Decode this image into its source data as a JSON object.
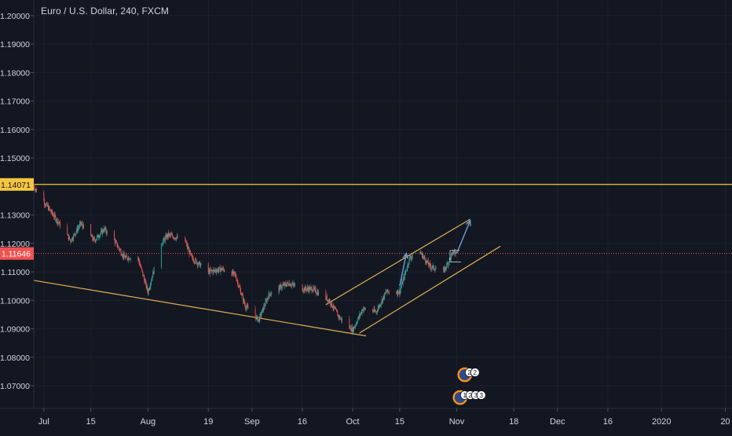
{
  "chart_title": "Euro / U.S. Dollar, 240, FXCM",
  "chart_data": {
    "type": "candlestick",
    "title": "Euro / U.S. Dollar, 240, FXCM",
    "symbol": "Euro / U.S. Dollar",
    "interval": "240",
    "source": "FXCM",
    "y_ticks": [
      "1.20000",
      "1.19000",
      "1.18000",
      "1.17000",
      "1.16000",
      "1.15000",
      "1.13000",
      "1.12000",
      "1.11000",
      "1.10000",
      "1.09000",
      "1.08000",
      "1.07000"
    ],
    "ylim": [
      1.062,
      1.2055
    ],
    "x_ticks": [
      "Jul",
      "15",
      "Aug",
      "19",
      "Sep",
      "16",
      "Oct",
      "15",
      "Nov",
      "18",
      "Dec",
      "16",
      "2020",
      "20"
    ],
    "x_tick_dates": [
      "2019-07-01",
      "2019-07-15",
      "2019-08-01",
      "2019-08-19",
      "2019-09-01",
      "2019-09-16",
      "2019-10-01",
      "2019-10-15",
      "2019-11-01",
      "2019-11-18",
      "2019-12-01",
      "2019-12-16",
      "2020-01-01",
      "2020-01-20"
    ],
    "xlim": [
      "2019-06-28",
      "2020-01-22"
    ],
    "price_path": [
      [
        "2019-06-28",
        1.14
      ],
      [
        "2019-07-02",
        1.133
      ],
      [
        "2019-07-05",
        1.128
      ],
      [
        "2019-07-09",
        1.121
      ],
      [
        "2019-07-12",
        1.127
      ],
      [
        "2019-07-16",
        1.121
      ],
      [
        "2019-07-19",
        1.125
      ],
      [
        "2019-07-22",
        1.121
      ],
      [
        "2019-07-25",
        1.115
      ],
      [
        "2019-07-29",
        1.115
      ],
      [
        "2019-08-01",
        1.103
      ],
      [
        "2019-08-05",
        1.12
      ],
      [
        "2019-08-07",
        1.123
      ],
      [
        "2019-08-12",
        1.121
      ],
      [
        "2019-08-14",
        1.115
      ],
      [
        "2019-08-19",
        1.11
      ],
      [
        "2019-08-23",
        1.111
      ],
      [
        "2019-08-27",
        1.109
      ],
      [
        "2019-08-30",
        1.098
      ],
      [
        "2019-09-03",
        1.093
      ],
      [
        "2019-09-06",
        1.102
      ],
      [
        "2019-09-10",
        1.105
      ],
      [
        "2019-09-12",
        1.106
      ],
      [
        "2019-09-16",
        1.104
      ],
      [
        "2019-09-19",
        1.104
      ],
      [
        "2019-09-24",
        1.1
      ],
      [
        "2019-09-27",
        1.094
      ],
      [
        "2019-10-01",
        1.0895
      ],
      [
        "2019-10-04",
        1.097
      ],
      [
        "2019-10-08",
        1.096
      ],
      [
        "2019-10-11",
        1.103
      ],
      [
        "2019-10-15",
        1.103
      ],
      [
        "2019-10-18",
        1.115
      ],
      [
        "2019-10-21",
        1.117
      ],
      [
        "2019-10-24",
        1.112
      ],
      [
        "2019-10-28",
        1.11
      ],
      [
        "2019-10-31",
        1.117
      ],
      [
        "2019-11-01",
        1.1165
      ]
    ],
    "current_price": "1.11646",
    "horizontal_lines": [
      {
        "label": "1.14071",
        "price": 1.14071,
        "color": "#f5c542"
      }
    ],
    "trendlines": [
      {
        "from": [
          "2019-06-28",
          1.107
        ],
        "to": [
          "2019-10-05",
          1.0875
        ],
        "color": "#e0b050"
      },
      {
        "from": [
          "2019-09-23",
          1.0985
        ],
        "to": [
          "2019-11-05",
          1.1285
        ],
        "color": "#e0b050"
      },
      {
        "from": [
          "2019-10-03",
          1.0885
        ],
        "to": [
          "2019-11-14",
          1.119
        ],
        "color": "#e0b050"
      }
    ],
    "projection_arrows": [
      {
        "from": [
          "2019-10-15",
          1.105
        ],
        "to": [
          "2019-10-17",
          1.1165
        ]
      },
      {
        "from": [
          "2019-11-01",
          1.1165
        ],
        "to": [
          "2019-11-05",
          1.128
        ]
      }
    ],
    "event_markers": [
      "2 2",
      "1 2 3 3"
    ],
    "colors": {
      "background": "#131722",
      "up": "#26a69a",
      "down": "#ef5350",
      "axis_text": "#d1d4dc",
      "resistance_line": "#f5c542",
      "price_line": "#ef5350",
      "arrow": "#6f9fd8"
    }
  }
}
